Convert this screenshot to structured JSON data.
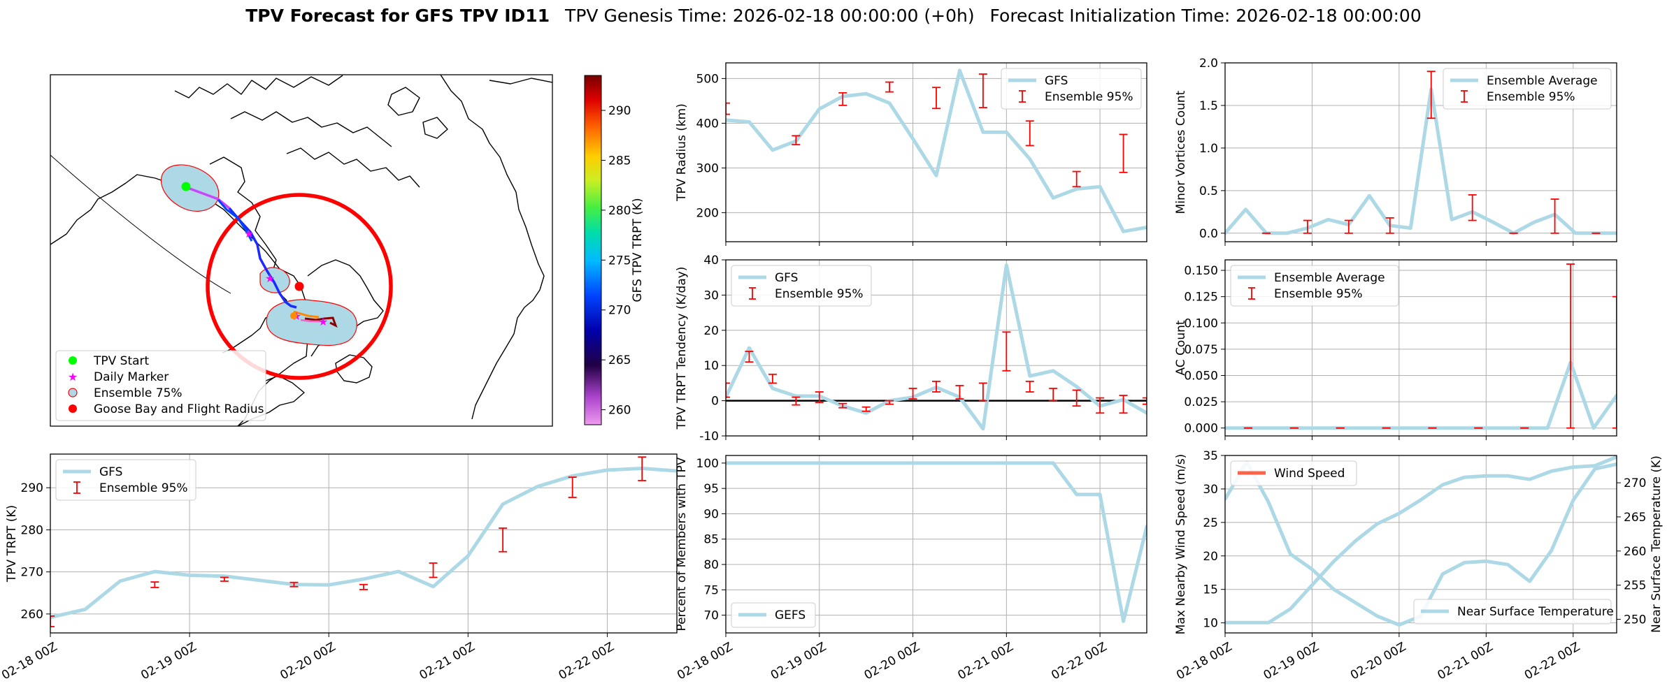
{
  "title": {
    "bold": "TPV Forecast for GFS TPV ID11",
    "genesis": "TPV Genesis Time: 2026-02-18 00:00:00 (+0h)",
    "init": "Forecast Initialization Time: 2026-02-18 00:00:00"
  },
  "time_ticks": [
    "02-18 00Z",
    "02-19 00Z",
    "02-20 00Z",
    "02-21 00Z",
    "02-22 00Z"
  ],
  "colors": {
    "series": "#add8e6",
    "error": "#ff0000",
    "wind": "#ff6347",
    "temp_axis": "#4169e1",
    "start": "#00ff00",
    "daily": "#ff00ff",
    "goose": "#ff0000"
  },
  "map": {
    "colorbar_label": "GFS TPV TRPT (K)",
    "colorbar_range": [
      258.5,
      293.5
    ],
    "colorbar_ticks": [
      "260",
      "265",
      "270",
      "275",
      "280",
      "285",
      "290"
    ],
    "legend": [
      "TPV Start",
      "Daily Marker",
      "Ensemble 75%",
      "Goose Bay and Flight Radius"
    ]
  },
  "chart_data": [
    {
      "id": "trpt",
      "type": "line",
      "ylabel": "TPV TRPT (K)",
      "ylim": [
        255.5,
        298
      ],
      "yticks": [
        260,
        270,
        280,
        290
      ],
      "series": [
        {
          "name": "GFS",
          "values": [
            259.2,
            261.1,
            267.8,
            270.1,
            269.2,
            269,
            268,
            267,
            266.9,
            268.3,
            270.1,
            266.5,
            273.8,
            286.1,
            290.3,
            292.8,
            294.2,
            294.6,
            294
          ]
        }
      ],
      "error_name": "Ensemble 95%",
      "errors": [
        [
          0,
          257,
          259.5
        ],
        [
          3,
          266.3,
          267.6
        ],
        [
          5,
          267.8,
          268.7
        ],
        [
          7,
          266.5,
          267.5
        ],
        [
          9,
          265.8,
          267
        ],
        [
          11,
          268.7,
          272.1
        ],
        [
          13,
          274.8,
          280.4
        ],
        [
          15,
          287.7,
          292.5
        ],
        [
          17,
          291.7,
          297.3
        ],
        [
          19,
          292.6,
          296.7
        ]
      ],
      "legend_loc": "upper left"
    },
    {
      "id": "radius",
      "type": "line",
      "ylabel": "TPV Radius (km)",
      "ylim": [
        135,
        535
      ],
      "yticks": [
        200,
        300,
        400,
        500
      ],
      "series": [
        {
          "name": "GFS",
          "values": [
            407,
            403,
            340,
            360,
            432,
            460,
            466,
            445,
            365,
            283,
            518,
            380,
            380,
            320,
            233,
            253,
            258,
            158,
            167
          ]
        }
      ],
      "error_name": "Ensemble 95%",
      "errors": [
        [
          0,
          420,
          445
        ],
        [
          3,
          352,
          372
        ],
        [
          5,
          440,
          468
        ],
        [
          7,
          470,
          492
        ],
        [
          9,
          433,
          480
        ],
        [
          11,
          435,
          510
        ],
        [
          13,
          350,
          405
        ],
        [
          15,
          258,
          292
        ],
        [
          17,
          290,
          375
        ],
        [
          19,
          345,
          435
        ]
      ],
      "legend_loc": "upper right"
    },
    {
      "id": "tendency",
      "type": "line",
      "ylabel": "TPV TRPT Tendency (K/day)",
      "ylim": [
        -10,
        40
      ],
      "yticks": [
        -10,
        0,
        10,
        20,
        30,
        40
      ],
      "hline": 0,
      "series": [
        {
          "name": "GFS",
          "values": [
            1,
            15,
            3.5,
            1.3,
            1.3,
            -1.5,
            -3.5,
            0,
            1,
            3.8,
            1,
            -8,
            38.5,
            7,
            8.5,
            4,
            -1.5,
            0.3,
            -3.5
          ]
        }
      ],
      "error_name": "Ensemble 95%",
      "errors": [
        [
          0,
          1,
          5
        ],
        [
          1,
          11,
          14
        ],
        [
          2,
          5,
          7.5
        ],
        [
          3,
          -1.2,
          1
        ],
        [
          4,
          -0.5,
          2.5
        ],
        [
          5,
          -2,
          -0.8
        ],
        [
          6,
          -3,
          -1.8
        ],
        [
          7,
          -1,
          0
        ],
        [
          8,
          0.5,
          3.5
        ],
        [
          9,
          2.5,
          5.5
        ],
        [
          10,
          0.5,
          4.3
        ],
        [
          11,
          0,
          5
        ],
        [
          12,
          8.5,
          19.5
        ],
        [
          13,
          2.5,
          5.5
        ],
        [
          14,
          0,
          3.5
        ],
        [
          15,
          -1.5,
          3
        ],
        [
          16,
          -3.5,
          0.8
        ],
        [
          17,
          -3.5,
          1.5
        ],
        [
          18,
          -1,
          0.8
        ]
      ],
      "legend_loc": "upper left"
    },
    {
      "id": "members",
      "type": "line",
      "ylabel": "Percent of Members with TPV",
      "ylim": [
        66.5,
        101.5
      ],
      "yticks": [
        70,
        75,
        80,
        85,
        90,
        95,
        100
      ],
      "series": [
        {
          "name": "GEFS",
          "values": [
            100,
            100,
            100,
            100,
            100,
            100,
            100,
            100,
            100,
            100,
            100,
            100,
            100,
            100,
            100,
            93.8,
            93.8,
            68.8,
            87.5
          ]
        }
      ],
      "legend_loc": "lower left"
    },
    {
      "id": "minor",
      "type": "line",
      "ylabel": "Minor Vortices Count",
      "ylim": [
        -0.1,
        2.0
      ],
      "yticks": [
        0.0,
        0.5,
        1.0,
        1.5,
        2.0
      ],
      "series": [
        {
          "name": "Ensemble Average",
          "values": [
            0,
            0.28,
            0,
            0,
            0.06,
            0.16,
            0.1,
            0.44,
            0.09,
            0.06,
            1.69,
            0.16,
            0.25,
            0.13,
            0,
            0.13,
            0.22,
            0,
            0,
            0
          ]
        }
      ],
      "error_name": "Ensemble 95%",
      "errors": [
        [
          2,
          0,
          0
        ],
        [
          4,
          0,
          0.15
        ],
        [
          6,
          0,
          0.15
        ],
        [
          8,
          0,
          0.18
        ],
        [
          10,
          1.35,
          1.9
        ],
        [
          12,
          0.15,
          0.45
        ],
        [
          14,
          0,
          0
        ],
        [
          16,
          0,
          0.4
        ],
        [
          18,
          0,
          0
        ]
      ],
      "legend_loc": "upper right"
    },
    {
      "id": "ac",
      "type": "line",
      "ylabel": "AC Count",
      "ylim": [
        -0.0075,
        0.16
      ],
      "yticks": [
        0.0,
        0.025,
        0.05,
        0.075,
        0.1,
        0.125,
        0.15
      ],
      "series": [
        {
          "name": "Ensemble Average",
          "values": [
            0,
            0,
            0,
            0,
            0,
            0,
            0,
            0,
            0,
            0,
            0,
            0,
            0,
            0,
            0,
            0.0625,
            0,
            0.031
          ]
        }
      ],
      "error_name": "Ensemble 95%",
      "errors": [
        [
          1,
          0,
          0
        ],
        [
          3,
          0,
          0
        ],
        [
          5,
          0,
          0
        ],
        [
          7,
          0,
          0
        ],
        [
          9,
          0,
          0
        ],
        [
          11,
          0,
          0
        ],
        [
          13,
          0,
          0
        ],
        [
          15,
          0,
          0.156
        ],
        [
          17,
          0,
          0.125
        ]
      ],
      "legend_loc": "upper left"
    },
    {
      "id": "wind_temp",
      "type": "line",
      "ylabel": "Max Nearby Wind Speed (m/s)",
      "ylabel_right": "Near Surface Temperature (K)",
      "ylim": [
        8.5,
        35
      ],
      "yticks": [
        10,
        15,
        20,
        25,
        30,
        35
      ],
      "ylim_right": [
        248,
        274
      ],
      "yticks_right": [
        250,
        255,
        260,
        265,
        270
      ],
      "series": [
        {
          "name": "Wind Speed",
          "axis": "left",
          "values": [
            28.5,
            34,
            28,
            20.3,
            18,
            15,
            13,
            11,
            9.7,
            11,
            17.3,
            19,
            19.2,
            18.7,
            16.2,
            20.8,
            28.3,
            33,
            33.7
          ]
        },
        {
          "name": "Near Surface Temperature",
          "axis": "right",
          "values": [
            249.5,
            249.5,
            249.5,
            251.5,
            255,
            258.5,
            261.5,
            264,
            265.5,
            267.5,
            269.7,
            270.8,
            271,
            271,
            270.5,
            271.7,
            272.3,
            272.5,
            273.8
          ]
        }
      ]
    }
  ]
}
